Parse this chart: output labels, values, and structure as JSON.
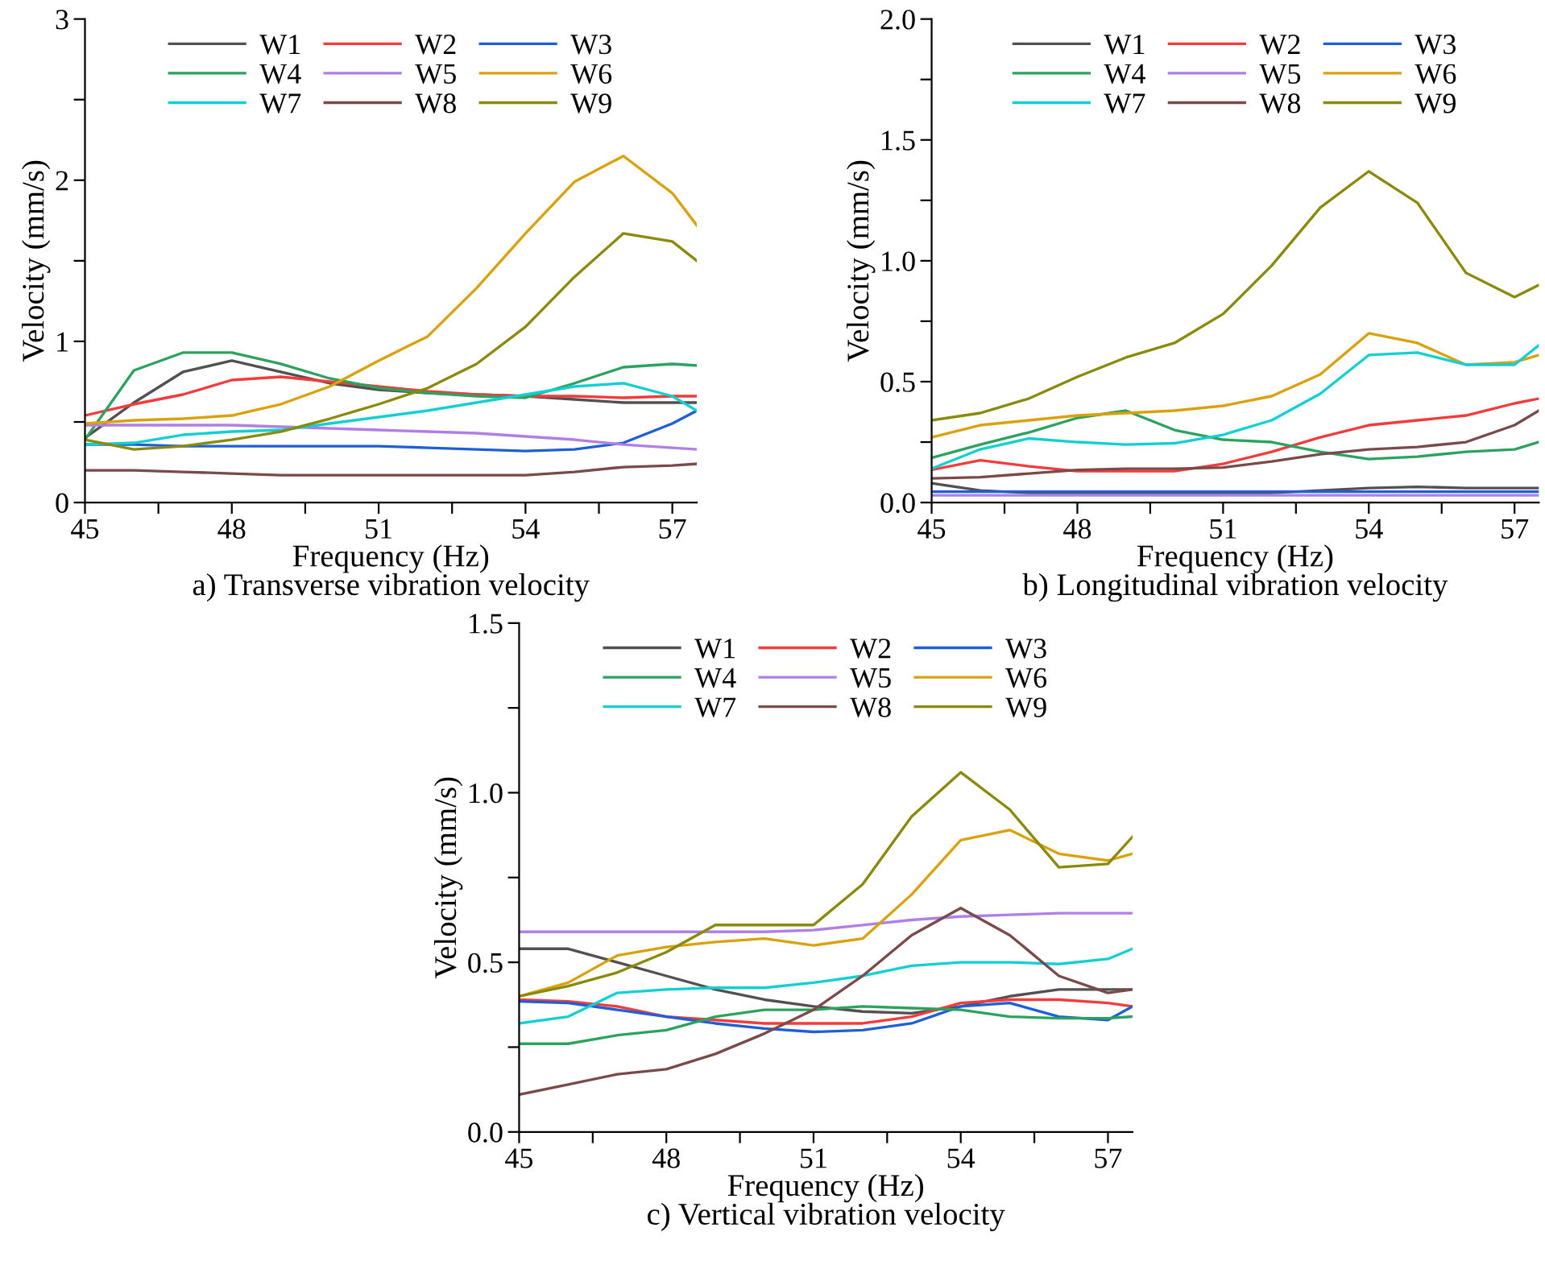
{
  "chart_data": [
    {
      "type": "line",
      "xlabel": "Frequency (Hz)",
      "ylabel": "Velocity (mm/s)",
      "annotations": [
        "a) Transverse vibration velocity"
      ],
      "legend": "top",
      "grid": false,
      "marker": "none",
      "line_style": "solid",
      "x": [
        45,
        46,
        47,
        48,
        49,
        50,
        51,
        52,
        53,
        54,
        55,
        56,
        57,
        57.5
      ],
      "xlim": [
        45,
        57.5
      ],
      "xticks": [
        45,
        {
          "value": 46.5,
          "label": null
        },
        48,
        {
          "value": 49.5,
          "label": null
        },
        51,
        {
          "value": 52.5,
          "label": null
        },
        54,
        {
          "value": 55.5,
          "label": null
        },
        57
      ],
      "ylim": [
        0,
        3
      ],
      "yticks": [
        0,
        {
          "value": 0.5,
          "label": null
        },
        1,
        {
          "value": 1.5,
          "label": null
        },
        2,
        {
          "value": 2.5,
          "label": null
        },
        3
      ],
      "series": [
        {
          "name": "W1",
          "color": "#555050",
          "values": [
            0.4,
            0.62,
            0.81,
            0.88,
            0.81,
            0.74,
            0.7,
            0.68,
            0.67,
            0.66,
            0.64,
            0.62,
            0.62,
            0.62
          ]
        },
        {
          "name": "W2",
          "color": "#f03c3c",
          "values": [
            0.54,
            0.61,
            0.67,
            0.76,
            0.78,
            0.75,
            0.72,
            0.69,
            0.67,
            0.66,
            0.66,
            0.65,
            0.66,
            0.66
          ]
        },
        {
          "name": "W3",
          "color": "#1f5fd6",
          "values": [
            0.36,
            0.36,
            0.35,
            0.35,
            0.35,
            0.35,
            0.35,
            0.34,
            0.33,
            0.32,
            0.33,
            0.37,
            0.49,
            0.57
          ]
        },
        {
          "name": "W4",
          "color": "#2ca25f",
          "values": [
            0.39,
            0.82,
            0.93,
            0.93,
            0.86,
            0.77,
            0.71,
            0.68,
            0.66,
            0.65,
            0.74,
            0.84,
            0.86,
            0.85
          ]
        },
        {
          "name": "W5",
          "color": "#b07fe6",
          "values": [
            0.48,
            0.48,
            0.48,
            0.48,
            0.47,
            0.46,
            0.45,
            0.44,
            0.43,
            0.41,
            0.39,
            0.36,
            0.34,
            0.33
          ]
        },
        {
          "name": "W6",
          "color": "#d9a20c",
          "values": [
            0.49,
            0.51,
            0.52,
            0.54,
            0.61,
            0.72,
            0.88,
            1.03,
            1.33,
            1.67,
            1.99,
            2.15,
            1.92,
            1.72
          ]
        },
        {
          "name": "W7",
          "color": "#14cfd2",
          "values": [
            0.36,
            0.37,
            0.42,
            0.44,
            0.45,
            0.49,
            0.53,
            0.57,
            0.62,
            0.67,
            0.72,
            0.74,
            0.66,
            0.57
          ]
        },
        {
          "name": "W8",
          "color": "#7a4a4a",
          "values": [
            0.2,
            0.2,
            0.19,
            0.18,
            0.17,
            0.17,
            0.17,
            0.17,
            0.17,
            0.17,
            0.19,
            0.22,
            0.23,
            0.24
          ]
        },
        {
          "name": "W9",
          "color": "#8a8a0a",
          "values": [
            0.39,
            0.33,
            0.35,
            0.39,
            0.44,
            0.52,
            0.61,
            0.71,
            0.86,
            1.09,
            1.4,
            1.67,
            1.62,
            1.5
          ]
        }
      ]
    },
    {
      "type": "line",
      "xlabel": "Frequency (Hz)",
      "ylabel": "Velocity (mm/s)",
      "annotations": [
        "b) Longitudinal vibration velocity"
      ],
      "legend": "top",
      "grid": false,
      "marker": "none",
      "line_style": "solid",
      "x": [
        45,
        46,
        47,
        48,
        49,
        50,
        51,
        52,
        53,
        54,
        55,
        56,
        57,
        57.5
      ],
      "xlim": [
        45,
        57.5
      ],
      "xticks": [
        45,
        {
          "value": 46.5,
          "label": null
        },
        48,
        {
          "value": 49.5,
          "label": null
        },
        51,
        {
          "value": 52.5,
          "label": null
        },
        54,
        {
          "value": 55.5,
          "label": null
        },
        57
      ],
      "ylim": [
        0,
        2
      ],
      "yticks": [
        {
          "value": 0,
          "label": "0.0"
        },
        {
          "value": 0.25,
          "label": null
        },
        {
          "value": 0.5,
          "label": "0.5"
        },
        {
          "value": 0.75,
          "label": null
        },
        {
          "value": 1,
          "label": "1.0"
        },
        {
          "value": 1.25,
          "label": null
        },
        {
          "value": 1.5,
          "label": "1.5"
        },
        {
          "value": 1.75,
          "label": null
        },
        {
          "value": 2,
          "label": "2.0"
        }
      ],
      "series": [
        {
          "name": "W1",
          "color": "#555050",
          "values": [
            0.08,
            0.05,
            0.04,
            0.04,
            0.04,
            0.04,
            0.04,
            0.04,
            0.05,
            0.06,
            0.065,
            0.06,
            0.06,
            0.06
          ]
        },
        {
          "name": "W2",
          "color": "#f03c3c",
          "values": [
            0.135,
            0.175,
            0.15,
            0.13,
            0.13,
            0.13,
            0.16,
            0.21,
            0.27,
            0.32,
            0.34,
            0.36,
            0.41,
            0.43
          ]
        },
        {
          "name": "W3",
          "color": "#1f5fd6",
          "values": [
            0.045,
            0.045,
            0.045,
            0.045,
            0.045,
            0.045,
            0.045,
            0.045,
            0.045,
            0.045,
            0.045,
            0.045,
            0.045,
            0.045
          ]
        },
        {
          "name": "W4",
          "color": "#2ca25f",
          "values": [
            0.185,
            0.24,
            0.29,
            0.35,
            0.38,
            0.3,
            0.26,
            0.25,
            0.21,
            0.18,
            0.19,
            0.21,
            0.22,
            0.25
          ]
        },
        {
          "name": "W5",
          "color": "#b07fe6",
          "values": [
            0.03,
            0.03,
            0.03,
            0.03,
            0.03,
            0.03,
            0.03,
            0.03,
            0.03,
            0.03,
            0.03,
            0.03,
            0.03,
            0.03
          ]
        },
        {
          "name": "W6",
          "color": "#d9a20c",
          "values": [
            0.27,
            0.32,
            0.34,
            0.36,
            0.37,
            0.38,
            0.4,
            0.44,
            0.53,
            0.7,
            0.66,
            0.57,
            0.58,
            0.61
          ]
        },
        {
          "name": "W7",
          "color": "#14cfd2",
          "values": [
            0.14,
            0.22,
            0.265,
            0.25,
            0.24,
            0.245,
            0.28,
            0.34,
            0.45,
            0.61,
            0.62,
            0.57,
            0.57,
            0.65
          ]
        },
        {
          "name": "W8",
          "color": "#7a4a4a",
          "values": [
            0.1,
            0.105,
            0.12,
            0.135,
            0.14,
            0.14,
            0.145,
            0.17,
            0.2,
            0.22,
            0.23,
            0.25,
            0.32,
            0.38
          ]
        },
        {
          "name": "W9",
          "color": "#8a8a0a",
          "values": [
            0.34,
            0.37,
            0.43,
            0.52,
            0.6,
            0.66,
            0.78,
            0.98,
            1.22,
            1.37,
            1.24,
            0.95,
            0.85,
            0.9
          ]
        }
      ]
    },
    {
      "type": "line",
      "xlabel": "Frequency (Hz)",
      "ylabel": "Velocity (mm/s)",
      "annotations": [
        "c) Vertical vibration velocity"
      ],
      "legend": "top",
      "grid": false,
      "marker": "none",
      "line_style": "solid",
      "x": [
        45,
        46,
        47,
        48,
        49,
        50,
        51,
        52,
        53,
        54,
        55,
        56,
        57,
        57.5
      ],
      "xlim": [
        45,
        57.5
      ],
      "xticks": [
        45,
        {
          "value": 46.5,
          "label": null
        },
        48,
        {
          "value": 49.5,
          "label": null
        },
        51,
        {
          "value": 52.5,
          "label": null
        },
        54,
        {
          "value": 55.5,
          "label": null
        },
        57
      ],
      "ylim": [
        0,
        1.5
      ],
      "yticks": [
        {
          "value": 0,
          "label": "0.0"
        },
        {
          "value": 0.25,
          "label": null
        },
        {
          "value": 0.5,
          "label": "0.5"
        },
        {
          "value": 0.75,
          "label": null
        },
        {
          "value": 1,
          "label": "1.0"
        },
        {
          "value": 1.25,
          "label": null
        },
        {
          "value": 1.5,
          "label": "1.5"
        }
      ],
      "series": [
        {
          "name": "W1",
          "color": "#555050",
          "values": [
            0.54,
            0.54,
            0.5,
            0.46,
            0.42,
            0.39,
            0.37,
            0.355,
            0.35,
            0.37,
            0.4,
            0.42,
            0.42,
            0.42
          ]
        },
        {
          "name": "W2",
          "color": "#f03c3c",
          "values": [
            0.39,
            0.385,
            0.37,
            0.34,
            0.33,
            0.32,
            0.32,
            0.32,
            0.34,
            0.38,
            0.39,
            0.39,
            0.38,
            0.37
          ]
        },
        {
          "name": "W3",
          "color": "#1f5fd6",
          "values": [
            0.385,
            0.38,
            0.36,
            0.34,
            0.32,
            0.305,
            0.295,
            0.3,
            0.32,
            0.37,
            0.38,
            0.34,
            0.33,
            0.37
          ]
        },
        {
          "name": "W4",
          "color": "#2ca25f",
          "values": [
            0.26,
            0.26,
            0.285,
            0.3,
            0.34,
            0.36,
            0.36,
            0.37,
            0.365,
            0.36,
            0.34,
            0.335,
            0.335,
            0.34
          ]
        },
        {
          "name": "W5",
          "color": "#b07fe6",
          "values": [
            0.59,
            0.59,
            0.59,
            0.59,
            0.59,
            0.59,
            0.595,
            0.61,
            0.625,
            0.635,
            0.64,
            0.645,
            0.645,
            0.645
          ]
        },
        {
          "name": "W6",
          "color": "#d9a20c",
          "values": [
            0.4,
            0.44,
            0.52,
            0.545,
            0.56,
            0.57,
            0.55,
            0.57,
            0.7,
            0.86,
            0.89,
            0.82,
            0.8,
            0.82
          ]
        },
        {
          "name": "W7",
          "color": "#14cfd2",
          "values": [
            0.32,
            0.34,
            0.41,
            0.42,
            0.425,
            0.425,
            0.44,
            0.46,
            0.49,
            0.5,
            0.5,
            0.495,
            0.51,
            0.54
          ]
        },
        {
          "name": "W8",
          "color": "#7a4a4a",
          "values": [
            0.11,
            0.14,
            0.17,
            0.185,
            0.23,
            0.29,
            0.36,
            0.46,
            0.58,
            0.66,
            0.58,
            0.46,
            0.41,
            0.42
          ]
        },
        {
          "name": "W9",
          "color": "#8a8a0a",
          "values": [
            0.4,
            0.43,
            0.47,
            0.53,
            0.61,
            0.61,
            0.61,
            0.73,
            0.93,
            1.06,
            0.95,
            0.78,
            0.79,
            0.87
          ]
        }
      ]
    }
  ]
}
